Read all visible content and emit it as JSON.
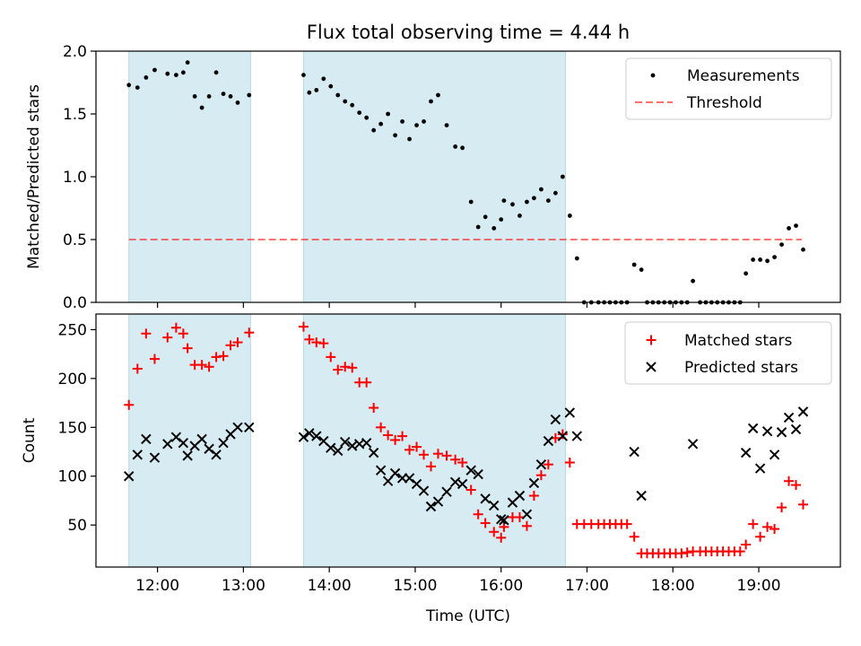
{
  "title": "Flux total observing time = 4.44 h",
  "xlabel": "Time (UTC)",
  "x_ticks": [
    "12:00",
    "13:00",
    "14:00",
    "15:00",
    "16:00",
    "17:00",
    "18:00",
    "19:00"
  ],
  "shaded_bands": [
    {
      "start": "11:40",
      "end": "13:05"
    },
    {
      "start": "13:42",
      "end": "16:45"
    }
  ],
  "colors": {
    "band": "#add8e6",
    "measurement": "#000000",
    "threshold": "#ff0000",
    "matched": "#ff0000",
    "predicted": "#000000"
  },
  "chart_data": [
    {
      "type": "scatter",
      "ylabel": "Matched/Predicted stars",
      "ylim": [
        0,
        2.0
      ],
      "y_ticks": [
        "0.0",
        "0.5",
        "1.0",
        "1.5",
        "2.0"
      ],
      "legend_placement": "top-right",
      "legend": {
        "measurements": "Measurements",
        "threshold": "Threshold"
      },
      "threshold": 0.5,
      "threshold_range": [
        "11:40",
        "19:30"
      ],
      "series": [
        {
          "name": "Measurements",
          "points": [
            [
              "11:40",
              1.73
            ],
            [
              "11:46",
              1.71
            ],
            [
              "11:52",
              1.79
            ],
            [
              "11:58",
              1.85
            ],
            [
              "12:07",
              1.82
            ],
            [
              "12:13",
              1.81
            ],
            [
              "12:18",
              1.83
            ],
            [
              "12:21",
              1.91
            ],
            [
              "12:26",
              1.64
            ],
            [
              "12:31",
              1.55
            ],
            [
              "12:36",
              1.64
            ],
            [
              "12:41",
              1.83
            ],
            [
              "12:46",
              1.66
            ],
            [
              "12:51",
              1.64
            ],
            [
              "12:56",
              1.59
            ],
            [
              "13:04",
              1.65
            ],
            [
              "13:42",
              1.81
            ],
            [
              "13:46",
              1.67
            ],
            [
              "13:51",
              1.69
            ],
            [
              "13:56",
              1.78
            ],
            [
              "14:01",
              1.72
            ],
            [
              "14:06",
              1.65
            ],
            [
              "14:11",
              1.6
            ],
            [
              "14:16",
              1.57
            ],
            [
              "14:21",
              1.51
            ],
            [
              "14:26",
              1.47
            ],
            [
              "14:31",
              1.37
            ],
            [
              "14:36",
              1.42
            ],
            [
              "14:41",
              1.5
            ],
            [
              "14:46",
              1.33
            ],
            [
              "14:51",
              1.44
            ],
            [
              "14:56",
              1.3
            ],
            [
              "15:01",
              1.41
            ],
            [
              "15:06",
              1.44
            ],
            [
              "15:11",
              1.6
            ],
            [
              "15:16",
              1.65
            ],
            [
              "15:22",
              1.41
            ],
            [
              "15:28",
              1.24
            ],
            [
              "15:33",
              1.23
            ],
            [
              "15:39",
              0.8
            ],
            [
              "15:44",
              0.6
            ],
            [
              "15:49",
              0.68
            ],
            [
              "15:55",
              0.59
            ],
            [
              "16:00",
              0.66
            ],
            [
              "16:02",
              0.81
            ],
            [
              "16:08",
              0.78
            ],
            [
              "16:13",
              0.69
            ],
            [
              "16:18",
              0.8
            ],
            [
              "16:23",
              0.83
            ],
            [
              "16:28",
              0.9
            ],
            [
              "16:33",
              0.81
            ],
            [
              "16:38",
              0.87
            ],
            [
              "16:43",
              1.0
            ],
            [
              "16:48",
              0.69
            ],
            [
              "16:53",
              0.35
            ],
            [
              "16:58",
              0.0
            ],
            [
              "17:03",
              0.0
            ],
            [
              "17:08",
              0.0
            ],
            [
              "17:12",
              0.0
            ],
            [
              "17:16",
              0.0
            ],
            [
              "17:20",
              0.0
            ],
            [
              "17:24",
              0.0
            ],
            [
              "17:28",
              0.0
            ],
            [
              "17:33",
              0.3
            ],
            [
              "17:38",
              0.26
            ],
            [
              "17:42",
              0.0
            ],
            [
              "17:46",
              0.0
            ],
            [
              "17:50",
              0.0
            ],
            [
              "17:54",
              0.0
            ],
            [
              "17:58",
              0.0
            ],
            [
              "18:02",
              0.0
            ],
            [
              "18:06",
              0.0
            ],
            [
              "18:10",
              0.0
            ],
            [
              "18:14",
              0.17
            ],
            [
              "18:19",
              0.0
            ],
            [
              "18:23",
              0.0
            ],
            [
              "18:27",
              0.0
            ],
            [
              "18:31",
              0.0
            ],
            [
              "18:35",
              0.0
            ],
            [
              "18:39",
              0.0
            ],
            [
              "18:43",
              0.0
            ],
            [
              "18:47",
              0.0
            ],
            [
              "18:51",
              0.23
            ],
            [
              "18:56",
              0.34
            ],
            [
              "19:01",
              0.34
            ],
            [
              "19:06",
              0.33
            ],
            [
              "19:11",
              0.36
            ],
            [
              "19:16",
              0.46
            ],
            [
              "19:21",
              0.59
            ],
            [
              "19:26",
              0.61
            ],
            [
              "19:31",
              0.42
            ]
          ]
        }
      ]
    },
    {
      "type": "scatter",
      "ylabel": "Count",
      "ylim": [
        7,
        266
      ],
      "y_ticks": [
        "50",
        "100",
        "150",
        "200",
        "250"
      ],
      "y_tick_values": [
        50,
        100,
        150,
        200,
        250
      ],
      "legend_placement": "top-right",
      "legend": {
        "matched": "Matched stars",
        "predicted": "Predicted stars"
      },
      "series": [
        {
          "name": "Matched stars",
          "points": [
            [
              "11:40",
              173
            ],
            [
              "11:46",
              210
            ],
            [
              "11:52",
              246
            ],
            [
              "11:58",
              220
            ],
            [
              "12:07",
              242
            ],
            [
              "12:13",
              252
            ],
            [
              "12:18",
              246
            ],
            [
              "12:21",
              231
            ],
            [
              "12:26",
              214
            ],
            [
              "12:31",
              214
            ],
            [
              "12:36",
              212
            ],
            [
              "12:41",
              222
            ],
            [
              "12:46",
              223
            ],
            [
              "12:51",
              234
            ],
            [
              "12:56",
              237
            ],
            [
              "13:04",
              247
            ],
            [
              "13:42",
              253
            ],
            [
              "13:46",
              240
            ],
            [
              "13:51",
              237
            ],
            [
              "13:56",
              236
            ],
            [
              "14:01",
              222
            ],
            [
              "14:06",
              209
            ],
            [
              "14:11",
              212
            ],
            [
              "14:16",
              211
            ],
            [
              "14:21",
              196
            ],
            [
              "14:26",
              196
            ],
            [
              "14:31",
              170
            ],
            [
              "14:36",
              150
            ],
            [
              "14:41",
              142
            ],
            [
              "14:46",
              137
            ],
            [
              "14:51",
              141
            ],
            [
              "14:56",
              127
            ],
            [
              "15:01",
              130
            ],
            [
              "15:06",
              122
            ],
            [
              "15:11",
              110
            ],
            [
              "15:16",
              123
            ],
            [
              "15:22",
              121
            ],
            [
              "15:28",
              117
            ],
            [
              "15:33",
              114
            ],
            [
              "15:39",
              86
            ],
            [
              "15:44",
              61
            ],
            [
              "15:49",
              52
            ],
            [
              "15:55",
              43
            ],
            [
              "16:00",
              37
            ],
            [
              "16:02",
              48
            ],
            [
              "16:08",
              58
            ],
            [
              "16:13",
              58
            ],
            [
              "16:18",
              49
            ],
            [
              "16:23",
              80
            ],
            [
              "16:28",
              101
            ],
            [
              "16:33",
              112
            ],
            [
              "16:38",
              139
            ],
            [
              "16:43",
              143
            ],
            [
              "16:48",
              114
            ],
            [
              "16:53",
              51
            ],
            [
              "16:58",
              51
            ],
            [
              "17:03",
              51
            ],
            [
              "17:08",
              51
            ],
            [
              "17:12",
              51
            ],
            [
              "17:16",
              51
            ],
            [
              "17:20",
              51
            ],
            [
              "17:24",
              51
            ],
            [
              "17:28",
              51
            ],
            [
              "17:33",
              38
            ],
            [
              "17:38",
              21
            ],
            [
              "17:42",
              21
            ],
            [
              "17:46",
              21
            ],
            [
              "17:50",
              21
            ],
            [
              "17:54",
              21
            ],
            [
              "17:58",
              21
            ],
            [
              "18:02",
              21
            ],
            [
              "18:06",
              21
            ],
            [
              "18:10",
              22
            ],
            [
              "18:14",
              23
            ],
            [
              "18:19",
              23
            ],
            [
              "18:23",
              23
            ],
            [
              "18:27",
              23
            ],
            [
              "18:31",
              23
            ],
            [
              "18:35",
              23
            ],
            [
              "18:39",
              23
            ],
            [
              "18:43",
              23
            ],
            [
              "18:47",
              23
            ],
            [
              "18:51",
              30
            ],
            [
              "18:56",
              51
            ],
            [
              "19:01",
              38
            ],
            [
              "19:06",
              48
            ],
            [
              "19:11",
              46
            ],
            [
              "19:16",
              68
            ],
            [
              "19:21",
              95
            ],
            [
              "19:26",
              91
            ],
            [
              "19:31",
              71
            ]
          ]
        },
        {
          "name": "Predicted stars",
          "points": [
            [
              "11:40",
              100
            ],
            [
              "11:46",
              122
            ],
            [
              "11:52",
              138
            ],
            [
              "11:58",
              119
            ],
            [
              "12:07",
              133
            ],
            [
              "12:13",
              140
            ],
            [
              "12:18",
              134
            ],
            [
              "12:21",
              121
            ],
            [
              "12:26",
              131
            ],
            [
              "12:31",
              138
            ],
            [
              "12:36",
              128
            ],
            [
              "12:41",
              122
            ],
            [
              "12:46",
              134
            ],
            [
              "12:51",
              143
            ],
            [
              "12:56",
              150
            ],
            [
              "13:04",
              150
            ],
            [
              "13:42",
              140
            ],
            [
              "13:46",
              144
            ],
            [
              "13:51",
              141
            ],
            [
              "13:56",
              136
            ],
            [
              "14:01",
              129
            ],
            [
              "14:06",
              126
            ],
            [
              "14:11",
              135
            ],
            [
              "14:16",
              131
            ],
            [
              "14:21",
              133
            ],
            [
              "14:26",
              134
            ],
            [
              "14:31",
              124
            ],
            [
              "14:36",
              106
            ],
            [
              "14:41",
              95
            ],
            [
              "14:46",
              103
            ],
            [
              "14:51",
              98
            ],
            [
              "14:56",
              98
            ],
            [
              "15:01",
              92
            ],
            [
              "15:06",
              85
            ],
            [
              "15:11",
              69
            ],
            [
              "15:16",
              74
            ],
            [
              "15:22",
              84
            ],
            [
              "15:28",
              94
            ],
            [
              "15:33",
              92
            ],
            [
              "15:39",
              106
            ],
            [
              "15:44",
              102
            ],
            [
              "15:49",
              77
            ],
            [
              "15:55",
              70
            ],
            [
              "16:00",
              56
            ],
            [
              "16:02",
              55
            ],
            [
              "16:08",
              73
            ],
            [
              "16:13",
              80
            ],
            [
              "16:18",
              61
            ],
            [
              "16:23",
              93
            ],
            [
              "16:28",
              112
            ],
            [
              "16:33",
              136
            ],
            [
              "16:38",
              158
            ],
            [
              "16:43",
              141
            ],
            [
              "16:48",
              165
            ],
            [
              "16:53",
              141
            ],
            [
              "17:33",
              125
            ],
            [
              "17:38",
              80
            ],
            [
              "18:14",
              133
            ],
            [
              "18:51",
              124
            ],
            [
              "18:56",
              149
            ],
            [
              "19:01",
              108
            ],
            [
              "19:06",
              146
            ],
            [
              "19:11",
              122
            ],
            [
              "19:16",
              145
            ],
            [
              "19:21",
              160
            ],
            [
              "19:26",
              148
            ],
            [
              "19:31",
              166
            ]
          ]
        }
      ]
    }
  ]
}
